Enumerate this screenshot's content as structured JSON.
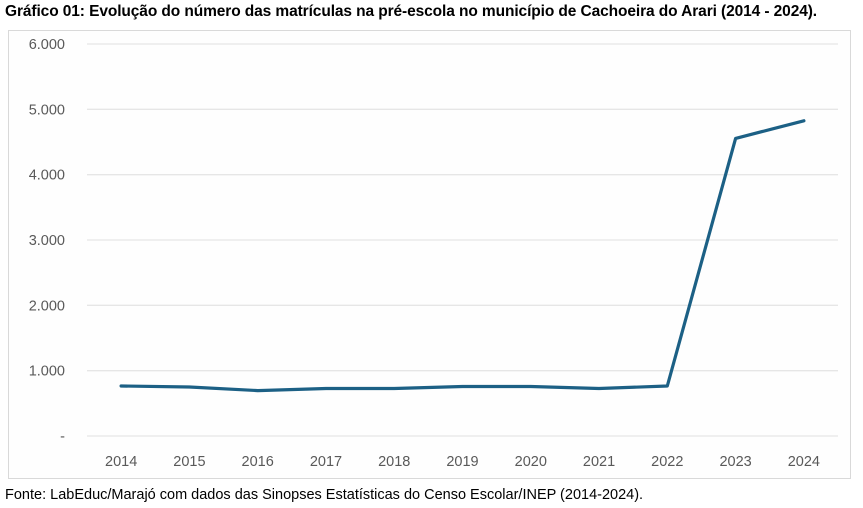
{
  "title": "Gráfico 01: Evolução do número das matrículas na pré-escola no município de Cachoeira do Arari (2014 - 2024).",
  "footer": "Fonte: LabEduc/Marajó com dados das Sinopses Estatísticas do Censo Escolar/INEP (2014-2024).",
  "colors": {
    "line": "#1c6085",
    "grid": "#e6e6e6",
    "axis_text": "#595959",
    "frame": "#d9d9d9"
  },
  "chart_data": {
    "type": "line",
    "title": "Gráfico 01: Evolução do número das matrículas na pré-escola no município de Cachoeira do Arari (2014 - 2024).",
    "xlabel": "",
    "ylabel": "",
    "categories": [
      "2014",
      "2015",
      "2016",
      "2017",
      "2018",
      "2019",
      "2020",
      "2021",
      "2022",
      "2023",
      "2024"
    ],
    "series": [
      {
        "name": "Matrículas na pré-escola",
        "values": [
          765,
          750,
          695,
          727,
          727,
          758,
          758,
          727,
          765,
          4555,
          4825
        ]
      }
    ],
    "ylim": [
      0,
      6000
    ],
    "yticks": [
      0,
      1000,
      2000,
      3000,
      4000,
      5000,
      6000
    ],
    "ytick_labels": [
      "-",
      "1.000",
      "2.000",
      "3.000",
      "4.000",
      "5.000",
      "6.000"
    ],
    "grid": true,
    "legend": "none"
  }
}
